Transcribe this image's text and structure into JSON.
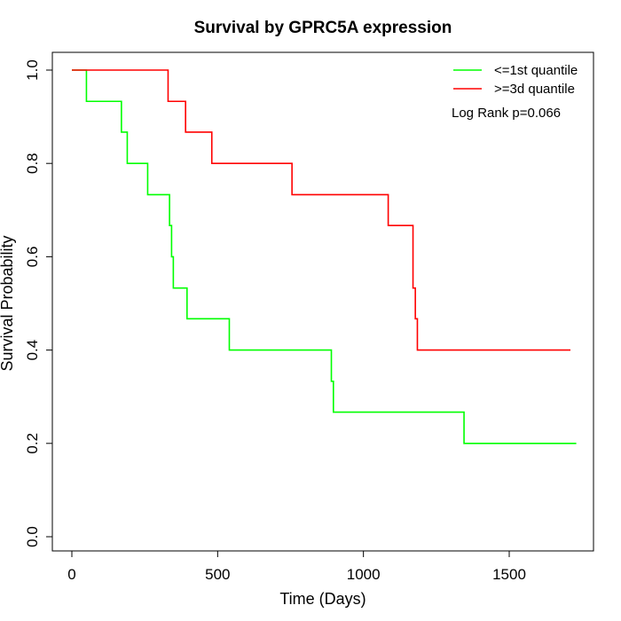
{
  "chart_data": {
    "type": "line",
    "subtype": "kaplan-meier step",
    "title": "Survival by GPRC5A expression",
    "xlabel": "Time (Days)",
    "ylabel": "Survival Probability",
    "xlim": [
      0,
      1800
    ],
    "ylim": [
      0,
      1.0
    ],
    "xticks": [
      0,
      500,
      1000,
      1500
    ],
    "xtick_labels": [
      "0",
      "500",
      "1000",
      "1500"
    ],
    "yticks": [
      0,
      0.2,
      0.4,
      0.6,
      0.8,
      1.0
    ],
    "ytick_labels": [
      "0.0",
      "0.2",
      "0.4",
      "0.6",
      "0.8",
      "1.0"
    ],
    "grid": false,
    "legend_position": "top-right",
    "annotation": "Log Rank p=0.066",
    "series": [
      {
        "name": "<=1st quantile",
        "color": "#00ff00",
        "x": [
          0,
          50,
          170,
          190,
          260,
          335,
          342,
          348,
          395,
          540,
          890,
          897,
          1345,
          1730
        ],
        "y": [
          1.0,
          0.933,
          0.867,
          0.8,
          0.733,
          0.667,
          0.6,
          0.533,
          0.467,
          0.4,
          0.333,
          0.267,
          0.2,
          0.2
        ]
      },
      {
        "name": ">=3d quantile",
        "color": "#ff0000",
        "x": [
          0,
          330,
          390,
          480,
          755,
          1085,
          1170,
          1178,
          1185,
          1710
        ],
        "y": [
          1.0,
          0.933,
          0.867,
          0.8,
          0.733,
          0.667,
          0.533,
          0.467,
          0.4,
          0.4
        ]
      }
    ]
  }
}
